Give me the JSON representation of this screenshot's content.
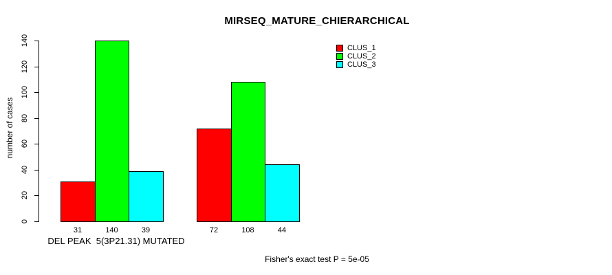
{
  "chart_data": {
    "type": "bar",
    "title": "MIRSEQ_MATURE_CHIERARCHICAL",
    "ylabel": "number of cases",
    "xlabel": "",
    "ylim": [
      0,
      140
    ],
    "yticks": [
      0,
      20,
      40,
      60,
      80,
      100,
      120,
      140
    ],
    "categories": [
      "DEL PEAK  5(3P21.31) MUTATED",
      ""
    ],
    "series": [
      {
        "name": "CLUS_1",
        "color": "#ff0000",
        "values": [
          31,
          72
        ]
      },
      {
        "name": "CLUS_2",
        "color": "#00ff00",
        "values": [
          140,
          108
        ]
      },
      {
        "name": "CLUS_3",
        "color": "#00ffff",
        "values": [
          39,
          44
        ]
      }
    ],
    "legend": {
      "position": "top-right",
      "entries": [
        "CLUS_1",
        "CLUS_2",
        "CLUS_3"
      ]
    },
    "bar_value_labels_visible": true,
    "grid": false,
    "bar_border_color": "#000000",
    "axis_color": "#000000",
    "background": "#ffffff",
    "footnote": "Fisher's exact test P = 5e-05"
  }
}
